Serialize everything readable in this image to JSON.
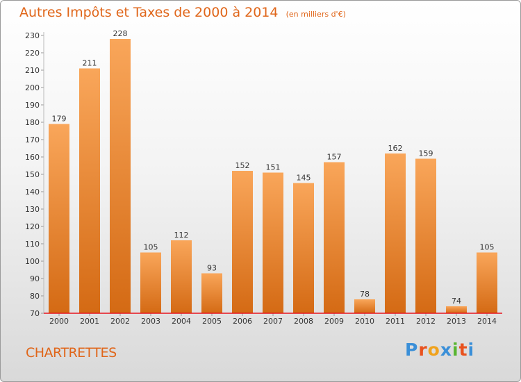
{
  "header": {
    "title": "Autres Impôts et Taxes de 2000 à 2014",
    "unit": "(en milliers d'€)"
  },
  "footer": {
    "commune": "CHARTRETTES",
    "logo_letters": [
      "P",
      "r",
      "o",
      "x",
      "i",
      "t",
      "i"
    ],
    "logo_colors": [
      "#3a8fd8",
      "#e9521e",
      "#f0a21c",
      "#3a8fd8",
      "#58b530",
      "#e9521e",
      "#3a8fd8"
    ]
  },
  "chart_data": {
    "type": "bar",
    "title": "Autres Impôts et Taxes de 2000 à 2014",
    "ylabel": "",
    "xlabel": "",
    "categories": [
      "2000",
      "2001",
      "2002",
      "2003",
      "2004",
      "2005",
      "2006",
      "2007",
      "2008",
      "2009",
      "2010",
      "2011",
      "2012",
      "2013",
      "2014"
    ],
    "values": [
      179,
      211,
      228,
      105,
      112,
      93,
      152,
      151,
      145,
      157,
      78,
      162,
      159,
      74,
      105
    ],
    "ylim": [
      70,
      230
    ],
    "yticks": [
      70,
      80,
      90,
      100,
      110,
      120,
      130,
      140,
      150,
      160,
      170,
      180,
      190,
      200,
      210,
      220,
      230
    ],
    "grid": false,
    "bar_color_top": "#f9a65a",
    "bar_color_bottom": "#d46a14",
    "axis_color": "#e8141e"
  }
}
